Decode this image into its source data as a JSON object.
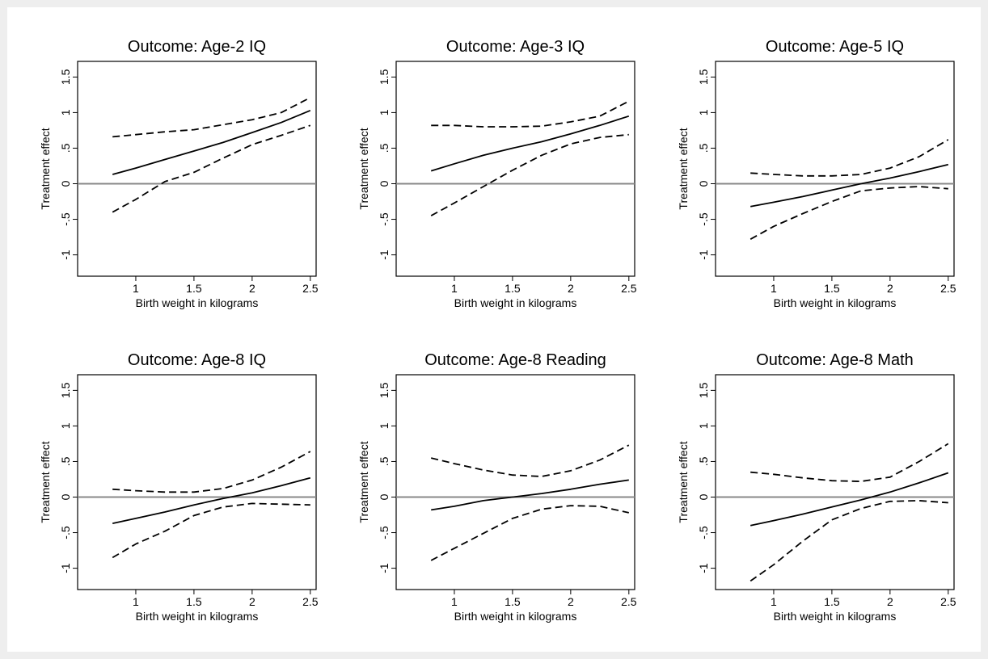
{
  "figure": {
    "background": "#ffffff",
    "frame": "#eeeeee"
  },
  "chart_data": [
    {
      "type": "line",
      "title": "Outcome: Age-2 IQ",
      "xlabel": "Birth weight in kilograms",
      "ylabel": "Treatment effect",
      "xlim": [
        0.8,
        2.5
      ],
      "ylim": [
        -1,
        1.5
      ],
      "xticks": [
        "1",
        "1.5",
        "2",
        "2.5"
      ],
      "yticks": [
        "-1",
        "-.5",
        "0",
        ".5",
        "1",
        "1.5"
      ],
      "reference_line": 0,
      "series": [
        {
          "style": "solid",
          "x": [
            0.8,
            1.0,
            1.25,
            1.5,
            1.75,
            2.0,
            2.25,
            2.5
          ],
          "y": [
            0.13,
            0.22,
            0.34,
            0.46,
            0.58,
            0.72,
            0.86,
            1.03
          ]
        },
        {
          "style": "dashed",
          "x": [
            0.8,
            1.0,
            1.25,
            1.5,
            1.75,
            2.0,
            2.25,
            2.5
          ],
          "y": [
            0.66,
            0.69,
            0.73,
            0.76,
            0.83,
            0.9,
            1.0,
            1.21
          ]
        },
        {
          "style": "dashed",
          "x": [
            0.8,
            1.0,
            1.25,
            1.5,
            1.75,
            2.0,
            2.25,
            2.5
          ],
          "y": [
            -0.4,
            -0.22,
            0.03,
            0.16,
            0.36,
            0.55,
            0.68,
            0.82
          ]
        }
      ]
    },
    {
      "type": "line",
      "title": "Outcome: Age-3 IQ",
      "xlabel": "Birth weight in kilograms",
      "ylabel": "Treatment effect",
      "xlim": [
        0.8,
        2.5
      ],
      "ylim": [
        -1,
        1.5
      ],
      "xticks": [
        "1",
        "1.5",
        "2",
        "2.5"
      ],
      "yticks": [
        "-1",
        "-.5",
        "0",
        ".5",
        "1",
        "1.5"
      ],
      "reference_line": 0,
      "series": [
        {
          "style": "solid",
          "x": [
            0.8,
            1.0,
            1.25,
            1.5,
            1.75,
            2.0,
            2.25,
            2.5
          ],
          "y": [
            0.18,
            0.28,
            0.4,
            0.5,
            0.59,
            0.7,
            0.82,
            0.95
          ]
        },
        {
          "style": "dashed",
          "x": [
            0.8,
            1.0,
            1.25,
            1.5,
            1.75,
            2.0,
            2.25,
            2.5
          ],
          "y": [
            0.82,
            0.82,
            0.8,
            0.8,
            0.81,
            0.87,
            0.95,
            1.16
          ]
        },
        {
          "style": "dashed",
          "x": [
            0.8,
            1.0,
            1.25,
            1.5,
            1.75,
            2.0,
            2.25,
            2.5
          ],
          "y": [
            -0.45,
            -0.27,
            -0.04,
            0.19,
            0.4,
            0.56,
            0.65,
            0.69
          ]
        }
      ]
    },
    {
      "type": "line",
      "title": "Outcome: Age-5 IQ",
      "xlabel": "Birth weight in kilograms",
      "ylabel": "Treatment effect",
      "xlim": [
        0.8,
        2.5
      ],
      "ylim": [
        -1,
        1.5
      ],
      "xticks": [
        "1",
        "1.5",
        "2",
        "2.5"
      ],
      "yticks": [
        "-1",
        "-.5",
        "0",
        ".5",
        "1",
        "1.5"
      ],
      "reference_line": 0,
      "series": [
        {
          "style": "solid",
          "x": [
            0.8,
            1.0,
            1.25,
            1.5,
            1.75,
            2.0,
            2.25,
            2.5
          ],
          "y": [
            -0.32,
            -0.26,
            -0.18,
            -0.09,
            0.0,
            0.08,
            0.17,
            0.27
          ]
        },
        {
          "style": "dashed",
          "x": [
            0.8,
            1.0,
            1.25,
            1.5,
            1.75,
            2.0,
            2.25,
            2.5
          ],
          "y": [
            0.15,
            0.13,
            0.11,
            0.11,
            0.13,
            0.22,
            0.38,
            0.62
          ]
        },
        {
          "style": "dashed",
          "x": [
            0.8,
            1.0,
            1.25,
            1.5,
            1.75,
            2.0,
            2.25,
            2.5
          ],
          "y": [
            -0.78,
            -0.6,
            -0.42,
            -0.25,
            -0.1,
            -0.06,
            -0.04,
            -0.07
          ]
        }
      ]
    },
    {
      "type": "line",
      "title": "Outcome: Age-8 IQ",
      "xlabel": "Birth weight in kilograms",
      "ylabel": "Treatment effect",
      "xlim": [
        0.8,
        2.5
      ],
      "ylim": [
        -1,
        1.5
      ],
      "xticks": [
        "1",
        "1.5",
        "2",
        "2.5"
      ],
      "yticks": [
        "-1",
        "-.5",
        "0",
        ".5",
        "1",
        "1.5"
      ],
      "reference_line": 0,
      "series": [
        {
          "style": "solid",
          "x": [
            0.8,
            1.0,
            1.25,
            1.5,
            1.75,
            2.0,
            2.25,
            2.5
          ],
          "y": [
            -0.37,
            -0.3,
            -0.21,
            -0.11,
            -0.02,
            0.06,
            0.16,
            0.27
          ]
        },
        {
          "style": "dashed",
          "x": [
            0.8,
            1.0,
            1.25,
            1.5,
            1.75,
            2.0,
            2.25,
            2.5
          ],
          "y": [
            0.11,
            0.09,
            0.07,
            0.07,
            0.12,
            0.24,
            0.42,
            0.64
          ]
        },
        {
          "style": "dashed",
          "x": [
            0.8,
            1.0,
            1.25,
            1.5,
            1.75,
            2.0,
            2.25,
            2.5
          ],
          "y": [
            -0.85,
            -0.66,
            -0.48,
            -0.26,
            -0.14,
            -0.09,
            -0.1,
            -0.11
          ]
        }
      ]
    },
    {
      "type": "line",
      "title": "Outcome: Age-8 Reading",
      "xlabel": "Birth weight in kilograms",
      "ylabel": "Treatment effect",
      "xlim": [
        0.8,
        2.5
      ],
      "ylim": [
        -1,
        1.5
      ],
      "xticks": [
        "1",
        "1.5",
        "2",
        "2.5"
      ],
      "yticks": [
        "-1",
        "-.5",
        "0",
        ".5",
        "1",
        "1.5"
      ],
      "reference_line": 0,
      "series": [
        {
          "style": "solid",
          "x": [
            0.8,
            1.0,
            1.25,
            1.5,
            1.75,
            2.0,
            2.25,
            2.5
          ],
          "y": [
            -0.18,
            -0.13,
            -0.05,
            0.0,
            0.05,
            0.11,
            0.18,
            0.24
          ]
        },
        {
          "style": "dashed",
          "x": [
            0.8,
            1.0,
            1.25,
            1.5,
            1.75,
            2.0,
            2.25,
            2.5
          ],
          "y": [
            0.55,
            0.47,
            0.38,
            0.31,
            0.29,
            0.37,
            0.52,
            0.73
          ]
        },
        {
          "style": "dashed",
          "x": [
            0.8,
            1.0,
            1.25,
            1.5,
            1.75,
            2.0,
            2.25,
            2.5
          ],
          "y": [
            -0.89,
            -0.72,
            -0.51,
            -0.3,
            -0.17,
            -0.12,
            -0.13,
            -0.22
          ]
        }
      ]
    },
    {
      "type": "line",
      "title": "Outcome: Age-8 Math",
      "xlabel": "Birth weight in kilograms",
      "ylabel": "Treatment effect",
      "xlim": [
        0.8,
        2.5
      ],
      "ylim": [
        -1,
        1.5
      ],
      "xticks": [
        "1",
        "1.5",
        "2",
        "2.5"
      ],
      "yticks": [
        "-1",
        "-.5",
        "0",
        ".5",
        "1",
        "1.5"
      ],
      "reference_line": 0,
      "series": [
        {
          "style": "solid",
          "x": [
            0.8,
            1.0,
            1.25,
            1.5,
            1.75,
            2.0,
            2.25,
            2.5
          ],
          "y": [
            -0.4,
            -0.33,
            -0.24,
            -0.14,
            -0.04,
            0.07,
            0.2,
            0.34
          ]
        },
        {
          "style": "dashed",
          "x": [
            0.8,
            1.0,
            1.25,
            1.5,
            1.75,
            2.0,
            2.25,
            2.5
          ],
          "y": [
            0.35,
            0.32,
            0.27,
            0.23,
            0.22,
            0.28,
            0.5,
            0.75
          ]
        },
        {
          "style": "dashed",
          "x": [
            0.8,
            1.0,
            1.25,
            1.5,
            1.75,
            2.0,
            2.25,
            2.5
          ],
          "y": [
            -1.18,
            -0.95,
            -0.62,
            -0.32,
            -0.16,
            -0.06,
            -0.05,
            -0.08
          ]
        }
      ]
    }
  ]
}
